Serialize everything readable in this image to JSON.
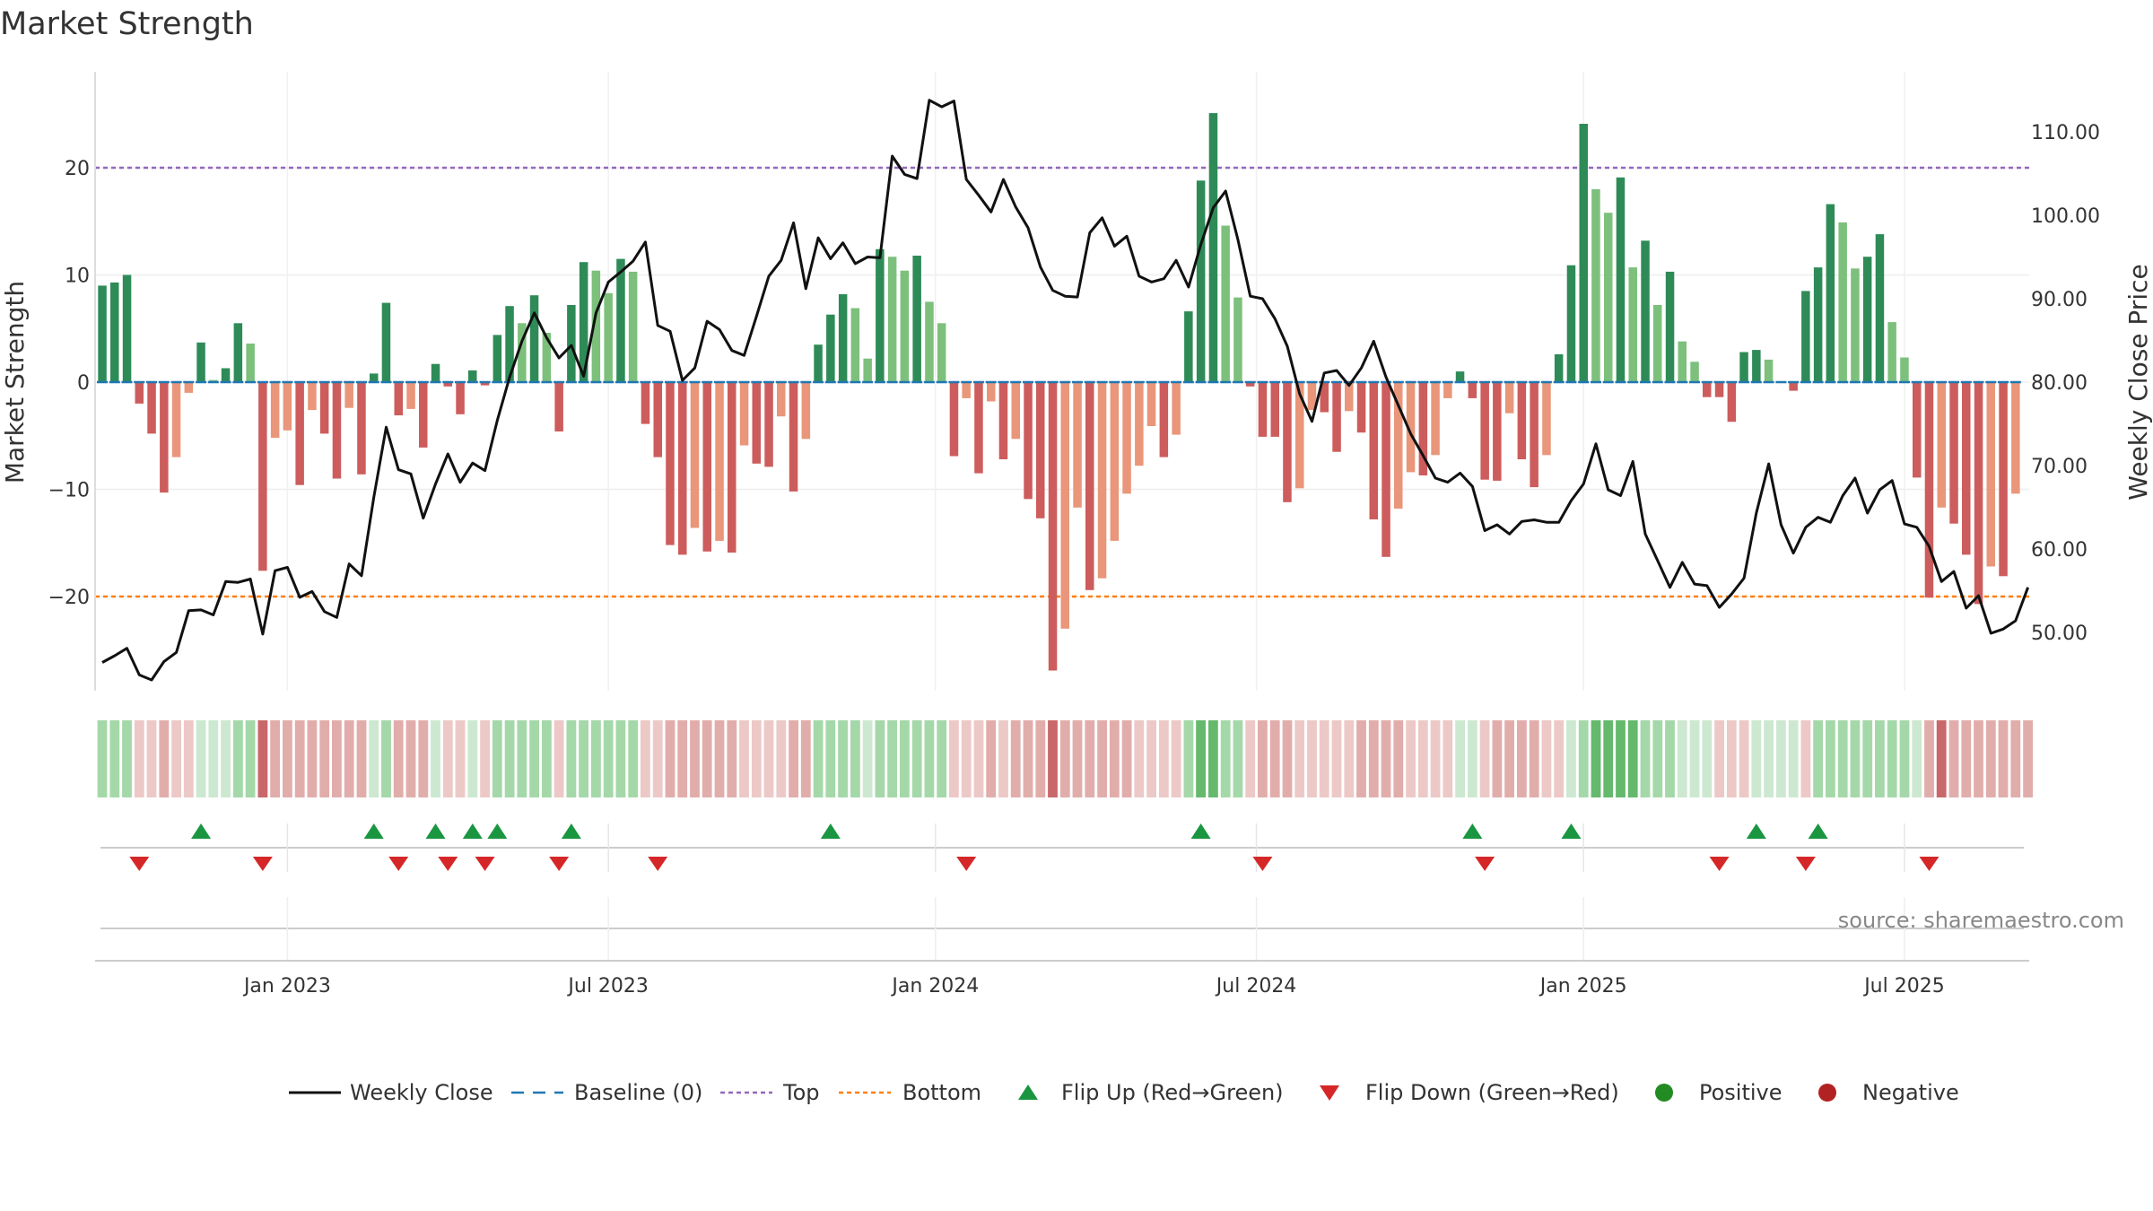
{
  "chart_data": {
    "type": "bar",
    "title": "Market Strength",
    "ylabel_left": "Market Strength",
    "ylabel_right": "Weekly Close Price",
    "source": "source: sharemaestro.com",
    "ylim_left": [
      -29,
      29
    ],
    "ylim_right": [
      45,
      116
    ],
    "left_ticks": [
      {
        "v": 20,
        "label": "20"
      },
      {
        "v": 10,
        "label": "10"
      },
      {
        "v": 0,
        "label": "0"
      },
      {
        "v": -10,
        "label": "−10"
      },
      {
        "v": -20,
        "label": "−20"
      }
    ],
    "right_ticks": [
      {
        "v": 110,
        "label": "110.00"
      },
      {
        "v": 100,
        "label": "100.00"
      },
      {
        "v": 90,
        "label": "90.00"
      },
      {
        "v": 80,
        "label": "80.00"
      },
      {
        "v": 70,
        "label": "70.00"
      },
      {
        "v": 60,
        "label": "60.00"
      },
      {
        "v": 50,
        "label": "50.00"
      }
    ],
    "x_ticks": [
      {
        "i": 15,
        "label": "Jan 2023"
      },
      {
        "i": 41,
        "label": "Jul 2023"
      },
      {
        "i": 67.5,
        "label": "Jan 2024"
      },
      {
        "i": 93.5,
        "label": "Jul 2024"
      },
      {
        "i": 120,
        "label": "Jan 2025"
      },
      {
        "i": 146,
        "label": "Jul 2025"
      }
    ],
    "top_line": 20,
    "bottom_line": -20,
    "strength": [
      9,
      9.3,
      10,
      -2,
      -4.8,
      -10.3,
      -7,
      -1,
      3.7,
      0.2,
      1.3,
      5.5,
      3.6,
      -17.6,
      -5.2,
      -4.5,
      -9.6,
      -2.6,
      -4.8,
      -9,
      -2.4,
      -8.6,
      0.8,
      7.4,
      -3.1,
      -2.5,
      -6.1,
      1.7,
      -0.4,
      -3,
      1.1,
      -0.3,
      4.4,
      7.1,
      5.5,
      8.1,
      4.6,
      -4.6,
      7.2,
      11.2,
      10.4,
      8.3,
      11.5,
      10.3,
      -3.9,
      -7,
      -15.2,
      -16.1,
      -13.6,
      -15.8,
      -14.8,
      -15.9,
      -5.9,
      -7.6,
      -7.9,
      -3.2,
      -10.2,
      -5.3,
      3.5,
      6.3,
      8.2,
      6.9,
      2.2,
      12.4,
      11.7,
      10.4,
      11.8,
      7.5,
      5.5,
      -6.9,
      -1.5,
      -8.5,
      -1.8,
      -7.2,
      -5.3,
      -10.9,
      -12.7,
      -26.9,
      -23,
      -11.7,
      -19.4,
      -18.3,
      -14.8,
      -10.4,
      -7.8,
      -4.1,
      -7,
      -4.9,
      6.6,
      18.8,
      25.1,
      14.6,
      7.9,
      -0.4,
      -5.1,
      -5.1,
      -11.2,
      -9.9,
      -2.6,
      -2.8,
      -6.5,
      -2.7,
      -4.7,
      -12.8,
      -16.3,
      -11.8,
      -8.4,
      -8.7,
      -6.8,
      -1.5,
      1,
      -1.5,
      -9.1,
      -9.2,
      -2.9,
      -7.2,
      -9.8,
      -6.8,
      2.6,
      10.9,
      24.1,
      18,
      15.8,
      19.1,
      10.7,
      13.2,
      7.2,
      10.3,
      3.8,
      1.9,
      -1.4,
      -1.4,
      -3.7,
      2.8,
      3,
      2.1,
      0,
      -0.8,
      8.5,
      10.7,
      16.6,
      14.9,
      10.6,
      11.7,
      13.8,
      5.6,
      2.3,
      -8.9,
      -20.1,
      -11.7,
      -13.2,
      -16.1,
      -20.7,
      -17.2,
      -18.1,
      -10.4
    ],
    "price": [
      46.4,
      47.2,
      48.1,
      44.9,
      44.3,
      46.5,
      47.6,
      52.6,
      52.7,
      52.1,
      56.1,
      56,
      56.4,
      49.8,
      57.4,
      57.8,
      54.2,
      54.9,
      52.5,
      51.8,
      58.2,
      56.8,
      66.2,
      74.6,
      69.5,
      69,
      63.7,
      67.8,
      71.4,
      68,
      70.3,
      69.4,
      75.4,
      80.6,
      84.9,
      88.3,
      85.3,
      82.9,
      84.4,
      80.7,
      88.3,
      92,
      93.2,
      94.5,
      96.8,
      86.8,
      86.1,
      80.2,
      81.7,
      87.3,
      86.3,
      83.8,
      83.2,
      87.9,
      92.7,
      94.6,
      99.1,
      91.2,
      97.3,
      94.8,
      96.7,
      94.2,
      95,
      94.9,
      107.1,
      104.9,
      104.4,
      113.8,
      113,
      113.7,
      104.3,
      102.4,
      100.4,
      104.3,
      101,
      98.5,
      93.8,
      91,
      90.3,
      90.2,
      97.9,
      99.7,
      96.3,
      97.5,
      92.7,
      92,
      92.4,
      94.6,
      91.4,
      96.5,
      100.9,
      102.9,
      97.1,
      90.3,
      90,
      87.6,
      84.3,
      78.6,
      75.3,
      81.1,
      81.4,
      79.6,
      81.7,
      84.9,
      80.6,
      77.2,
      73.8,
      71.2,
      68.5,
      68,
      69.1,
      67.5,
      62.2,
      62.9,
      61.8,
      63.3,
      63.5,
      63.2,
      63.2,
      65.8,
      67.8,
      72.6,
      67.1,
      66.4,
      70.5,
      61.8,
      58.6,
      55.4,
      58.4,
      55.8,
      55.6,
      53,
      54.6,
      56.5,
      64.3,
      70.2,
      62.9,
      59.5,
      62.6,
      63.8,
      63.2,
      66.4,
      68.5,
      64.3,
      67.1,
      68.2,
      63,
      62.6,
      60.3,
      56.1,
      57.3,
      52.9,
      54.4,
      49.9,
      50.4,
      51.4,
      55.4
    ],
    "momentum": [
      4,
      4,
      4,
      2,
      2,
      1,
      2,
      2,
      3,
      3,
      3,
      4,
      4,
      0,
      1,
      1,
      1,
      1,
      1,
      1,
      1,
      1,
      3,
      4,
      1,
      1,
      1,
      3,
      2,
      2,
      3,
      2,
      4,
      4,
      4,
      4,
      4,
      2,
      4,
      4,
      4,
      4,
      4,
      4,
      2,
      2,
      1,
      1,
      1,
      1,
      1,
      1,
      2,
      2,
      2,
      2,
      1,
      1,
      4,
      4,
      4,
      4,
      3,
      4,
      4,
      4,
      4,
      4,
      4,
      2,
      2,
      2,
      1,
      2,
      1,
      1,
      1,
      0,
      1,
      1,
      1,
      1,
      1,
      1,
      2,
      2,
      2,
      2,
      4,
      5,
      5,
      4,
      4,
      2,
      1,
      1,
      1,
      2,
      2,
      2,
      2,
      2,
      1,
      1,
      1,
      1,
      2,
      2,
      2,
      2,
      3,
      3,
      2,
      1,
      1,
      1,
      1,
      2,
      2,
      3,
      4,
      5,
      5,
      5,
      5,
      4,
      4,
      4,
      3,
      3,
      3,
      2,
      2,
      2,
      3,
      3,
      3,
      3,
      2,
      4,
      4,
      4,
      4,
      4,
      4,
      4,
      4,
      3,
      1,
      0,
      1,
      1,
      1,
      1,
      1,
      1,
      1
    ],
    "flip_up": [
      8,
      22,
      27,
      30,
      32,
      38,
      59,
      89,
      111,
      119,
      134,
      139
    ],
    "flip_down": [
      3,
      13,
      24,
      28,
      31,
      37,
      45,
      70,
      94,
      112,
      131,
      138,
      148
    ],
    "colors": {
      "strong_pos": "#2e8b57",
      "light_pos": "#7cc07c",
      "strong_neg": "#cd5c5c",
      "light_neg": "#e9967a",
      "price_line": "#111111",
      "baseline": "#1f77b4",
      "top": "#9467bd",
      "bottom": "#ff7f0e",
      "flip_up": "#1a9641",
      "flip_down": "#d62728",
      "positive": "#228b22",
      "negative": "#b22222",
      "heat": [
        "#c9686a",
        "#e1adab",
        "#ecc9c7",
        "#cde8d0",
        "#a5d8a9",
        "#65b96d"
      ]
    },
    "legend": [
      {
        "key": "close",
        "label": "Weekly Close"
      },
      {
        "key": "baseline",
        "label": "Baseline (0)"
      },
      {
        "key": "top",
        "label": "Top"
      },
      {
        "key": "bottom",
        "label": "Bottom"
      },
      {
        "key": "up",
        "label": "Flip Up (Red→Green)"
      },
      {
        "key": "down",
        "label": "Flip Down (Green→Red)"
      },
      {
        "key": "pos",
        "label": "Positive"
      },
      {
        "key": "neg",
        "label": "Negative"
      }
    ]
  }
}
